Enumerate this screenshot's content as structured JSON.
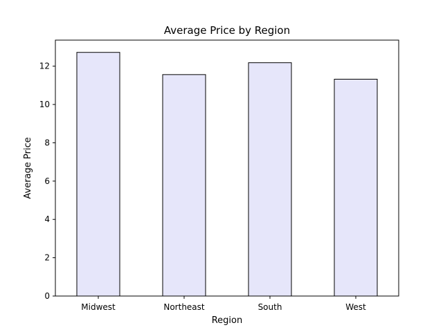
{
  "chart_data": {
    "type": "bar",
    "title": "Average Price by Region",
    "xlabel": "Region",
    "ylabel": "Average Price",
    "categories": [
      "Midwest",
      "Northeast",
      "South",
      "West"
    ],
    "values": [
      12.72,
      11.56,
      12.18,
      11.32
    ],
    "ylim": [
      0,
      13.36
    ],
    "yticks": [
      "0",
      "2",
      "4",
      "6",
      "8",
      "10",
      "12"
    ],
    "bar_color": "#e6e6fa",
    "bar_edge_color": "#000000",
    "grid": false,
    "legend": "none"
  }
}
